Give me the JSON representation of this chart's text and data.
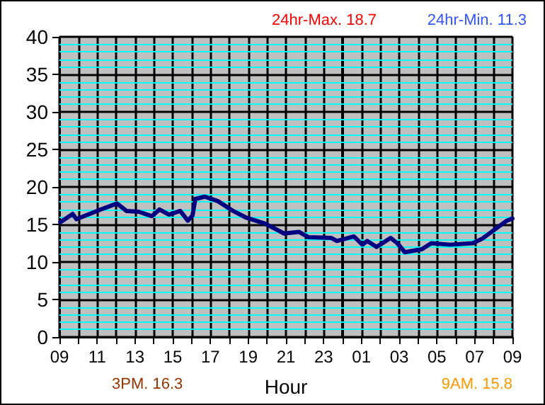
{
  "chart_data": {
    "type": "line",
    "xlabel": "Hour",
    "annotations": [
      "24hr-Max. 18.7",
      "24hr-Min. 11.3",
      "3PM. 16.3",
      "9AM. 15.8"
    ],
    "series": [
      {
        "color": "#000080",
        "x": [
          "--01-01T09:03",
          "--01-01T09:42",
          "--01-01T09:54",
          "--01-01T10:24",
          "--01-01T11:12",
          "--01-01T12:03",
          "--01-01T12:33",
          "--01-01T13:12",
          "--01-01T13:54",
          "--01-01T14:18",
          "--01-01T14:48",
          "--01-01T15:24",
          "--01-01T15:48",
          "--01-01T16:03",
          "--01-01T16:12",
          "--01-01T16:42",
          "--01-01T17:24",
          "--01-01T18:12",
          "--01-01T18:54",
          "--01-01T19:54",
          "--01-01T20:54",
          "--01-01T21:42",
          "--01-01T22:12",
          "--01-01T23:24",
          "--01-01T23:42",
          "--01-02T00:36",
          "--01-02T01:03",
          "--01-02T01:18",
          "--01-02T01:48",
          "--01-02T02:33",
          "--01-02T02:54",
          "--01-02T03:18",
          "--01-02T04:12",
          "--01-02T04:42",
          "--01-02T05:42",
          "--01-02T06:54",
          "--01-02T07:24",
          "--01-02T08:03",
          "--01-02T08:42",
          "--01-02T09:00"
        ],
        "values": [
          15.3,
          16.4,
          15.7,
          16.2,
          17.0,
          17.8,
          16.8,
          16.7,
          16.1,
          17.0,
          16.3,
          16.8,
          15.5,
          16.2,
          18.4,
          18.7,
          18.1,
          16.8,
          15.9,
          15.1,
          13.8,
          14.0,
          13.3,
          13.2,
          12.8,
          13.4,
          12.3,
          12.8,
          12.0,
          13.2,
          12.5,
          11.3,
          11.7,
          12.5,
          12.3,
          12.5,
          13.1,
          14.3,
          15.5,
          15.8
        ]
      }
    ],
    "xlim": [
      "--01-01T09:00",
      "--01-02T09:00"
    ],
    "xticks": [
      {
        "value": "--01-01T09:00",
        "label": "09"
      },
      {
        "value": "--01-01T10:00",
        "label": null
      },
      {
        "value": "--01-01T11:00",
        "label": "11"
      },
      {
        "value": "--01-01T12:00",
        "label": null
      },
      {
        "value": "--01-01T13:00",
        "label": "13"
      },
      {
        "value": "--01-01T14:00",
        "label": null
      },
      {
        "value": "--01-01T15:00",
        "label": "15"
      },
      {
        "value": "--01-01T16:00",
        "label": null
      },
      {
        "value": "--01-01T17:00",
        "label": "17"
      },
      {
        "value": "--01-01T18:00",
        "label": null
      },
      {
        "value": "--01-01T19:00",
        "label": "19"
      },
      {
        "value": "--01-01T20:00",
        "label": null
      },
      {
        "value": "--01-01T21:00",
        "label": "21"
      },
      {
        "value": "--01-01T22:00",
        "label": null
      },
      {
        "value": "--01-01T23:00",
        "label": "23"
      },
      {
        "value": "--01-02T00:00",
        "label": null
      },
      {
        "value": "--01-02T01:00",
        "label": "01"
      },
      {
        "value": "--01-02T02:00",
        "label": null
      },
      {
        "value": "--01-02T03:00",
        "label": "03"
      },
      {
        "value": "--01-02T04:00",
        "label": null
      },
      {
        "value": "--01-02T05:00",
        "label": "05"
      },
      {
        "value": "--01-02T06:00",
        "label": null
      },
      {
        "value": "--01-02T07:00",
        "label": "07"
      },
      {
        "value": "--01-02T08:00",
        "label": null
      },
      {
        "value": "--01-02T09:00",
        "label": "09"
      }
    ],
    "ylim": [
      0,
      40
    ],
    "yticks": [
      0,
      {
        "value": 1,
        "label": null
      },
      {
        "value": 2,
        "label": null
      },
      {
        "value": 3,
        "label": null
      },
      {
        "value": 4,
        "label": null
      },
      5,
      {
        "value": 6,
        "label": null
      },
      {
        "value": 7,
        "label": null
      },
      {
        "value": 8,
        "label": null
      },
      {
        "value": 9,
        "label": null
      },
      10,
      {
        "value": 11,
        "label": null
      },
      {
        "value": 12,
        "label": null
      },
      {
        "value": 13,
        "label": null
      },
      {
        "value": 14,
        "label": null
      },
      15,
      {
        "value": 16,
        "label": null
      },
      {
        "value": 17,
        "label": null
      },
      {
        "value": 18,
        "label": null
      },
      {
        "value": 19,
        "label": null
      },
      20,
      {
        "value": 21,
        "label": null
      },
      {
        "value": 22,
        "label": null
      },
      {
        "value": 23,
        "label": null
      },
      {
        "value": 24,
        "label": null
      },
      25,
      {
        "value": 26,
        "label": null
      },
      {
        "value": 27,
        "label": null
      },
      {
        "value": 28,
        "label": null
      },
      {
        "value": 29,
        "label": null
      },
      30,
      {
        "value": 31,
        "label": null
      },
      {
        "value": 32,
        "label": null
      },
      {
        "value": 33,
        "label": null
      },
      {
        "value": 34,
        "label": null
      },
      35,
      {
        "value": 36,
        "label": null
      },
      {
        "value": 37,
        "label": null
      },
      {
        "value": 38,
        "label": null
      },
      {
        "value": 39,
        "label": null
      },
      40
    ],
    "ref_lines": [
      {
        "axis": "x",
        "value": "--01-02T00:00",
        "color": "#000000"
      }
    ],
    "grid": true,
    "marker": "none",
    "line_style": "solid"
  }
}
